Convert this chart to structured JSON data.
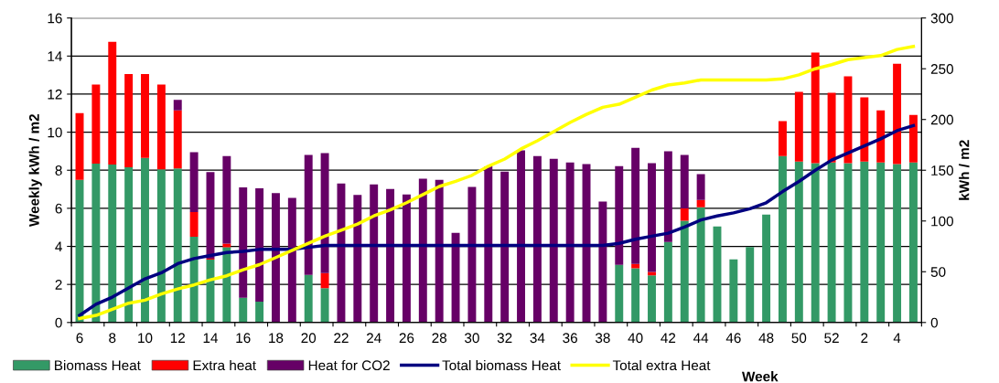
{
  "chart_data": {
    "type": "bar",
    "stacked": true,
    "xlabel": "Week",
    "ylabel": "Weekly kWh / m2",
    "y2label": "kWh / m2",
    "categories": [
      "6",
      null,
      "8",
      null,
      "10",
      null,
      "12",
      null,
      "14",
      null,
      "16",
      null,
      "18",
      null,
      "20",
      null,
      "22",
      null,
      "24",
      null,
      "26",
      null,
      "28",
      null,
      "30",
      null,
      "32",
      null,
      "34",
      null,
      "36",
      null,
      "38",
      null,
      "40",
      null,
      "42",
      null,
      "44",
      null,
      "46",
      null,
      "48",
      null,
      "50",
      null,
      "52",
      null,
      "2",
      null,
      "4",
      null
    ],
    "ylim": [
      0,
      16
    ],
    "yticks": [
      0,
      2,
      4,
      6,
      8,
      10,
      12,
      14,
      16
    ],
    "y2lim": [
      0,
      300
    ],
    "y2ticks": [
      0,
      50,
      100,
      150,
      200,
      250,
      300
    ],
    "grid": "y",
    "legend": "bottom",
    "series": [
      {
        "name": "Biomass Heat",
        "color": "#339966",
        "values": [
          7.5,
          8.35,
          8.3,
          8.15,
          8.65,
          8.05,
          8.1,
          4.5,
          3.3,
          3.95,
          1.3,
          1.1,
          0,
          0,
          2.5,
          1.8,
          0,
          0,
          0,
          0,
          0,
          0,
          0,
          0,
          0,
          0,
          0,
          0,
          0,
          0,
          0,
          0,
          0,
          3.03,
          2.85,
          2.47,
          4.23,
          5.35,
          6.06,
          5.05,
          3.32,
          3.96,
          5.67,
          8.75,
          8.46,
          8.37,
          8.41,
          8.37,
          8.46,
          8.41,
          8.32,
          8.41
        ]
      },
      {
        "name": "Extra heat",
        "color": "#ff0000",
        "values": [
          3.5,
          4.15,
          6.45,
          4.9,
          4.4,
          4.45,
          3.05,
          1.3,
          0.05,
          0.2,
          0,
          0,
          0,
          0,
          0,
          0.8,
          0,
          0,
          0,
          0,
          0,
          0,
          0,
          0,
          0,
          0,
          0,
          0,
          0,
          0,
          0,
          0,
          0,
          0,
          0.23,
          0.19,
          0,
          0.65,
          0.38,
          0,
          0,
          0,
          0,
          1.83,
          3.66,
          5.81,
          3.66,
          4.56,
          3.37,
          2.74,
          5.28,
          2.5
        ]
      },
      {
        "name": "Heat for CO2",
        "color": "#660066",
        "values": [
          0,
          0,
          0,
          0,
          0,
          0,
          0.55,
          3.15,
          4.55,
          4.6,
          5.8,
          5.95,
          6.8,
          6.55,
          6.3,
          6.3,
          7.3,
          6.7,
          7.26,
          7.02,
          6.73,
          7.55,
          7.5,
          4.71,
          7.12,
          8.2,
          7.93,
          9.05,
          8.75,
          8.6,
          8.41,
          8.32,
          6.35,
          5.19,
          6.1,
          5.71,
          4.77,
          2.8,
          1.35,
          0,
          0,
          0,
          0,
          0,
          0,
          0,
          0,
          0,
          0,
          0,
          0,
          0
        ]
      },
      {
        "name": "Total biomass Heat",
        "type": "line",
        "axis": "y2",
        "color": "#000080",
        "values": [
          7,
          18,
          25,
          34,
          43,
          49,
          58,
          63,
          66,
          69,
          70,
          72,
          72,
          72,
          74,
          76,
          76,
          76,
          76,
          76,
          76,
          76,
          76,
          76,
          76,
          76,
          76,
          76,
          76,
          76,
          76,
          76,
          76,
          78,
          82,
          85,
          88,
          94,
          101,
          105,
          108,
          112,
          118,
          129,
          139,
          150,
          160,
          167,
          174,
          181,
          189,
          194
        ]
      },
      {
        "name": "Total extra Heat",
        "type": "line",
        "axis": "y2",
        "color": "#ffff00",
        "values": [
          4,
          7,
          13,
          19,
          22,
          28,
          33,
          37,
          42,
          46,
          52,
          57,
          64,
          71,
          78,
          85,
          91,
          97,
          105,
          111,
          118,
          126,
          134,
          139,
          145,
          154,
          161,
          171,
          179,
          188,
          197,
          205,
          212,
          215,
          222,
          229,
          234,
          236,
          239,
          239,
          239,
          239,
          239,
          240,
          244,
          250,
          254,
          259,
          261,
          263,
          269,
          272
        ]
      }
    ]
  }
}
